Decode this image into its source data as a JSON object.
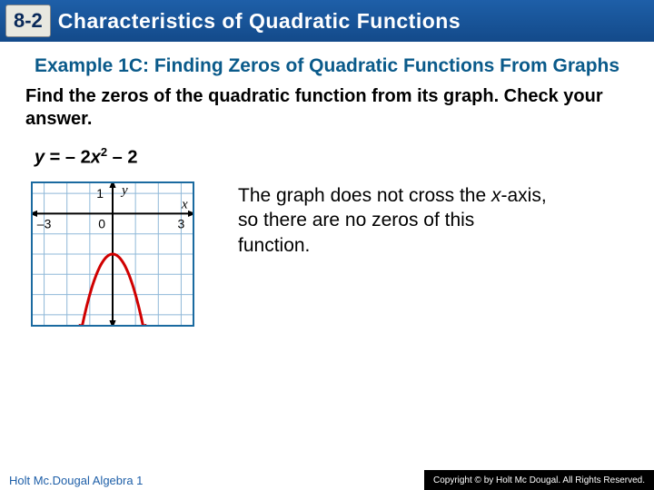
{
  "header": {
    "section_number": "8-2",
    "title": "Characteristics of Quadratic Functions"
  },
  "example": {
    "label": "Example 1C: Finding Zeros of Quadratic Functions From Graphs",
    "instruction": "Find the zeros of the quadratic function from its graph. Check your answer.",
    "equation_y": "y",
    "equation_eq": " = ",
    "equation_coeff": "– 2",
    "equation_x": "x",
    "equation_exp": "2",
    "equation_tail": " – 2"
  },
  "graph": {
    "xlim": [
      -3.5,
      3.5
    ],
    "ylim": [
      -5.5,
      1.5
    ],
    "grid_step": 1,
    "x_ticks": [
      {
        "v": -3,
        "label": "–3"
      },
      {
        "v": 3,
        "label": "3"
      }
    ],
    "y_ticks": [
      {
        "v": 1,
        "label": "1"
      }
    ],
    "origin_label": "0",
    "x_axis_label": "x",
    "y_axis_label": "y",
    "curve": {
      "type": "parabola",
      "a": -2,
      "b": 0,
      "c": -2,
      "sample_xmin": -1.35,
      "sample_xmax": 1.35,
      "color": "#d00000",
      "width": 3
    },
    "border_color": "#1a6aa0",
    "grid_color": "#8fb8d8",
    "background": "#ffffff"
  },
  "explanation": {
    "pre": "The graph does not cross the ",
    "xvar": "x",
    "post": "-axis, so there are no zeros of this function."
  },
  "footer": {
    "left": "Holt Mc.Dougal Algebra 1",
    "right": "Copyright © by Holt Mc Dougal. All Rights Reserved."
  }
}
